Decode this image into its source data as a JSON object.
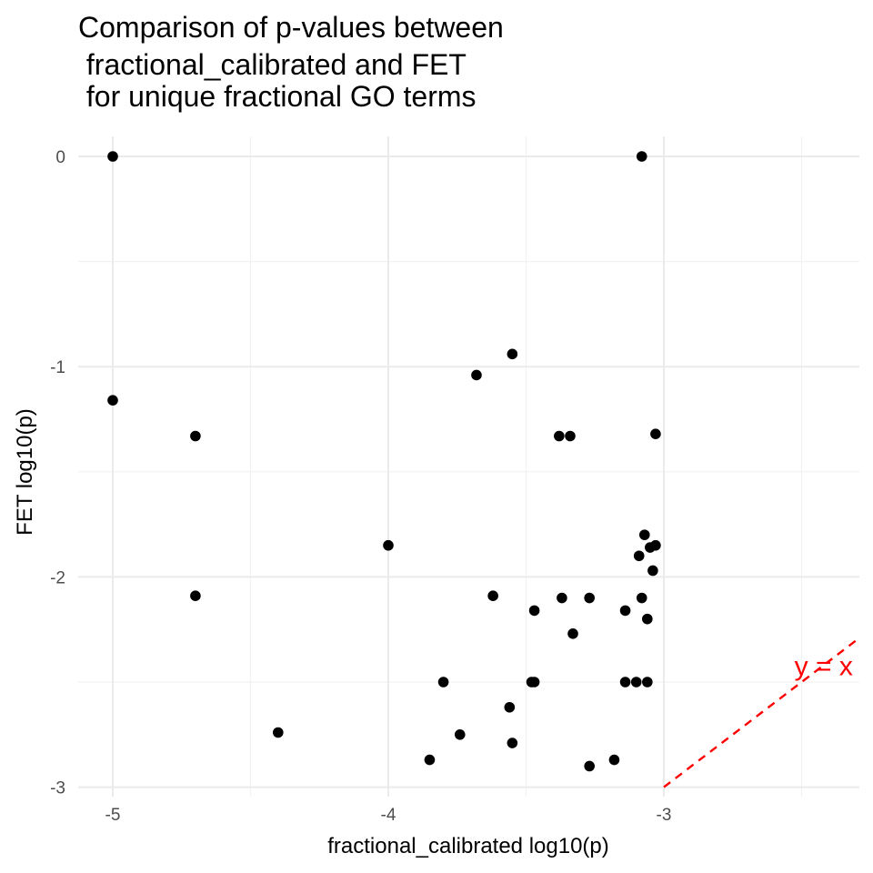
{
  "chart_data": {
    "type": "scatter",
    "title_lines": [
      "Comparison of p-values between",
      " fractional_calibrated and FET",
      " for unique fractional GO terms"
    ],
    "xlabel": "fractional_calibrated log10(p)",
    "ylabel": "FET log10(p)",
    "xlim": [
      -5.1,
      -2.3
    ],
    "ylim": [
      -3.0,
      0.0
    ],
    "x_ticks": [
      -5,
      -4,
      -3
    ],
    "x_tick_labels": [
      "-5",
      "-4",
      "-3"
    ],
    "x_minor_ticks": [
      -4.5,
      -3.5,
      -2.5
    ],
    "y_ticks": [
      0,
      -1,
      -2,
      -3
    ],
    "y_tick_labels": [
      "0",
      "-1",
      "-2",
      "-3"
    ],
    "y_minor_ticks": [
      -0.5,
      -1.5,
      -2.5
    ],
    "grid": true,
    "reference_line": {
      "slope": 1,
      "intercept": 0,
      "label": "y = x",
      "color": "#ff0000",
      "style": "dashed"
    },
    "points": [
      {
        "x": -5.0,
        "y": 0.0
      },
      {
        "x": -3.08,
        "y": 0.0
      },
      {
        "x": -3.55,
        "y": -0.94
      },
      {
        "x": -3.68,
        "y": -1.04
      },
      {
        "x": -5.0,
        "y": -1.16
      },
      {
        "x": -4.7,
        "y": -1.33
      },
      {
        "x": -3.38,
        "y": -1.33
      },
      {
        "x": -3.34,
        "y": -1.33
      },
      {
        "x": -3.03,
        "y": -1.32
      },
      {
        "x": -3.07,
        "y": -1.8
      },
      {
        "x": -3.03,
        "y": -1.85
      },
      {
        "x": -3.05,
        "y": -1.86
      },
      {
        "x": -3.09,
        "y": -1.9
      },
      {
        "x": -3.04,
        "y": -1.97
      },
      {
        "x": -4.0,
        "y": -1.85
      },
      {
        "x": -4.7,
        "y": -2.09
      },
      {
        "x": -3.62,
        "y": -2.09
      },
      {
        "x": -3.37,
        "y": -2.1
      },
      {
        "x": -3.27,
        "y": -2.1
      },
      {
        "x": -3.08,
        "y": -2.1
      },
      {
        "x": -3.47,
        "y": -2.16
      },
      {
        "x": -3.14,
        "y": -2.16
      },
      {
        "x": -3.06,
        "y": -2.2
      },
      {
        "x": -3.33,
        "y": -2.27
      },
      {
        "x": -3.8,
        "y": -2.5
      },
      {
        "x": -3.48,
        "y": -2.5
      },
      {
        "x": -3.47,
        "y": -2.5
      },
      {
        "x": -3.14,
        "y": -2.5
      },
      {
        "x": -3.1,
        "y": -2.5
      },
      {
        "x": -3.06,
        "y": -2.5
      },
      {
        "x": -3.56,
        "y": -2.62
      },
      {
        "x": -4.4,
        "y": -2.74
      },
      {
        "x": -3.74,
        "y": -2.75
      },
      {
        "x": -3.55,
        "y": -2.79
      },
      {
        "x": -3.85,
        "y": -2.87
      },
      {
        "x": -3.18,
        "y": -2.87
      },
      {
        "x": -3.27,
        "y": -2.9
      }
    ]
  }
}
